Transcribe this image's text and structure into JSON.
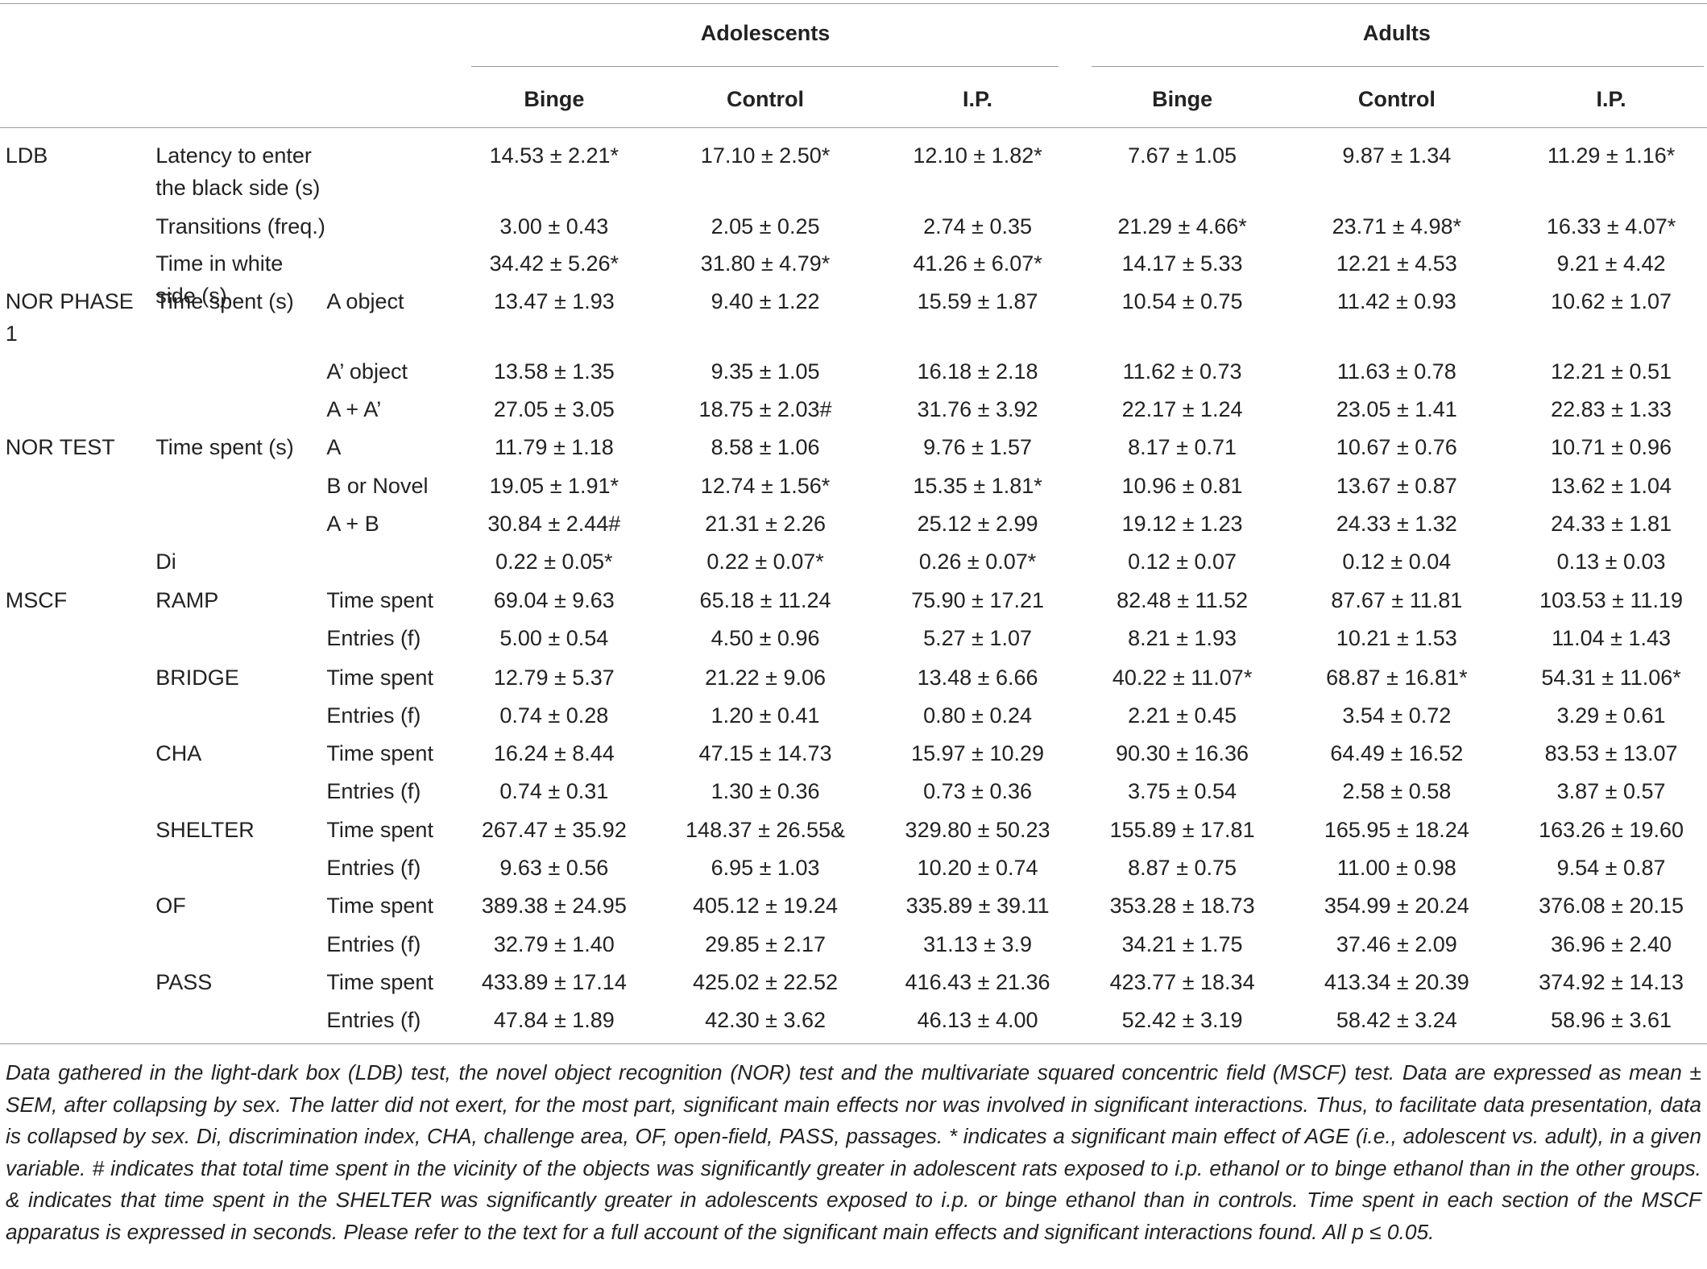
{
  "table": {
    "column_groups": [
      "Adolescents",
      "Adults"
    ],
    "columns": [
      "Binge",
      "Control",
      "I.P.",
      "Binge",
      "Control",
      "I.P."
    ],
    "rows": [
      [
        "LDB",
        "Latency to enter the black side (s)",
        null,
        "14.53 ± 2.21*",
        "17.10 ± 2.50*",
        "12.10 ± 1.82*",
        "7.67 ± 1.05",
        "9.87 ± 1.34",
        "11.29 ± 1.16*"
      ],
      [
        null,
        "Transitions (freq.)",
        null,
        "3.00 ± 0.43",
        "2.05 ± 0.25",
        "2.74 ± 0.35",
        "21.29 ± 4.66*",
        "23.71 ± 4.98*",
        "16.33 ± 4.07*"
      ],
      [
        null,
        "Time in white side (s)",
        null,
        "34.42 ± 5.26*",
        "31.80 ± 4.79*",
        "41.26 ± 6.07*",
        "14.17 ± 5.33",
        "12.21 ± 4.53",
        "9.21 ± 4.42"
      ],
      [
        "NOR PHASE 1",
        "Time spent (s)",
        "A object",
        "13.47 ± 1.93",
        "9.40 ± 1.22",
        "15.59 ± 1.87",
        "10.54 ± 0.75",
        "11.42 ± 0.93",
        "10.62 ± 1.07"
      ],
      [
        null,
        null,
        "A’ object",
        "13.58 ± 1.35",
        "9.35 ± 1.05",
        "16.18 ± 2.18",
        "11.62 ± 0.73",
        "11.63 ± 0.78",
        "12.21 ± 0.51"
      ],
      [
        null,
        null,
        "A + A’",
        "27.05 ± 3.05",
        "18.75 ± 2.03#",
        "31.76 ± 3.92",
        "22.17 ± 1.24",
        "23.05 ± 1.41",
        "22.83 ± 1.33"
      ],
      [
        "NOR TEST",
        "Time spent (s)",
        "A",
        "11.79 ± 1.18",
        "8.58 ± 1.06",
        "9.76 ± 1.57",
        "8.17 ± 0.71",
        "10.67 ± 0.76",
        "10.71 ± 0.96"
      ],
      [
        null,
        null,
        "B or Novel",
        "19.05 ± 1.91*",
        "12.74 ± 1.56*",
        "15.35 ± 1.81*",
        "10.96 ± 0.81",
        "13.67 ± 0.87",
        "13.62 ± 1.04"
      ],
      [
        null,
        null,
        "A + B",
        "30.84 ± 2.44#",
        "21.31 ± 2.26",
        "25.12 ± 2.99",
        "19.12 ± 1.23",
        "24.33 ± 1.32",
        "24.33 ± 1.81"
      ],
      [
        null,
        "Di",
        null,
        "0.22 ± 0.05*",
        "0.22 ± 0.07*",
        "0.26 ± 0.07*",
        "0.12 ± 0.07",
        "0.12 ± 0.04",
        "0.13 ± 0.03"
      ],
      [
        "MSCF",
        "RAMP",
        "Time spent",
        "69.04 ± 9.63",
        "65.18 ± 11.24",
        "75.90 ± 17.21",
        "82.48 ± 11.52",
        "87.67 ± 11.81",
        "103.53 ± 11.19"
      ],
      [
        null,
        null,
        "Entries (f)",
        "5.00 ± 0.54",
        "4.50 ± 0.96",
        "5.27 ± 1.07",
        "8.21 ± 1.93",
        "10.21 ± 1.53",
        "11.04 ± 1.43"
      ],
      [
        null,
        "BRIDGE",
        "Time spent",
        "12.79 ± 5.37",
        "21.22 ± 9.06",
        "13.48 ± 6.66",
        "40.22 ± 11.07*",
        "68.87 ± 16.81*",
        "54.31 ± 11.06*"
      ],
      [
        null,
        null,
        "Entries (f)",
        "0.74 ± 0.28",
        "1.20 ± 0.41",
        "0.80 ± 0.24",
        "2.21 ± 0.45",
        "3.54 ± 0.72",
        "3.29 ± 0.61"
      ],
      [
        null,
        "CHA",
        "Time spent",
        "16.24 ± 8.44",
        "47.15 ± 14.73",
        "15.97 ± 10.29",
        "90.30 ± 16.36",
        "64.49 ± 16.52",
        "83.53 ± 13.07"
      ],
      [
        null,
        null,
        "Entries (f)",
        "0.74 ± 0.31",
        "1.30 ± 0.36",
        "0.73 ± 0.36",
        "3.75 ± 0.54",
        "2.58 ± 0.58",
        "3.87 ± 0.57"
      ],
      [
        null,
        "SHELTER",
        "Time spent",
        "267.47 ± 35.92",
        "148.37 ± 26.55&",
        "329.80 ± 50.23",
        "155.89 ± 17.81",
        "165.95 ± 18.24",
        "163.26 ± 19.60"
      ],
      [
        null,
        null,
        "Entries (f)",
        "9.63 ± 0.56",
        "6.95 ± 1.03",
        "10.20 ± 0.74",
        "8.87 ± 0.75",
        "11.00 ± 0.98",
        "9.54 ± 0.87"
      ],
      [
        null,
        "OF",
        "Time spent",
        "389.38 ± 24.95",
        "405.12 ± 19.24",
        "335.89 ± 39.11",
        "353.28 ± 18.73",
        "354.99 ± 20.24",
        "376.08 ± 20.15"
      ],
      [
        null,
        null,
        "Entries (f)",
        "32.79 ± 1.40",
        "29.85 ± 2.17",
        "31.13 ± 3.9",
        "34.21 ± 1.75",
        "37.46 ± 2.09",
        "36.96 ± 2.40"
      ],
      [
        null,
        "PASS",
        "Time spent",
        "433.89 ± 17.14",
        "425.02 ± 22.52",
        "416.43 ± 21.36",
        "423.77 ± 18.34",
        "413.34 ± 20.39",
        "374.92 ± 14.13"
      ],
      [
        null,
        null,
        "Entries (f)",
        "47.84 ± 1.89",
        "42.30 ± 3.62",
        "46.13 ± 4.00",
        "52.42 ± 3.19",
        "58.42 ± 3.24",
        "58.96 ± 3.61"
      ]
    ]
  },
  "caption": "Data gathered in the light-dark box (LDB) test, the novel object recognition (NOR) test and the multivariate squared concentric field (MSCF) test. Data are expressed as mean ± SEM, after collapsing by sex. The latter did not exert, for the most part, significant main effects nor was involved in significant interactions. Thus, to facilitate data presentation, data is collapsed by sex. Di, discrimination index, CHA, challenge area, OF, open-field, PASS, passages. * indicates a significant main effect of AGE (i.e., adolescent vs. adult), in a given variable. # indicates that total time spent in the vicinity of the objects was significantly greater in adolescent rats exposed to i.p. ethanol or to binge ethanol than in the other groups. & indicates that time spent in the SHELTER was significantly greater in adolescents exposed to i.p. or binge ethanol than in controls. Time spent in each section of the MSCF apparatus is expressed in seconds. Please refer to the text for a full account of the significant main effects and significant interactions found. All p ≤ 0.05."
}
